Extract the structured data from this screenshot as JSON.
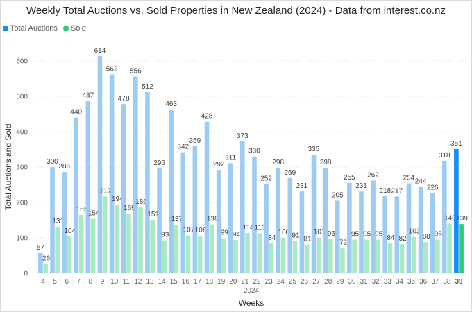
{
  "chart_data": {
    "type": "bar",
    "title": "Weekly Total Auctions vs. Sold Properties in New Zealand (2024) - Data from interest.co.nz",
    "xlabel": "Weeks",
    "x_sublabel": "2024",
    "ylabel": "Total Auctions and Sold",
    "ylim": [
      0,
      650
    ],
    "yticks": [
      0,
      100,
      200,
      300,
      400,
      500,
      600
    ],
    "grid": true,
    "legend_position": "top-left",
    "categories": [
      "4",
      "5",
      "6",
      "7",
      "8",
      "9",
      "10",
      "11",
      "12",
      "13",
      "14",
      "15",
      "16",
      "17",
      "18",
      "19",
      "20",
      "21",
      "22",
      "23",
      "24",
      "25",
      "26",
      "27",
      "28",
      "29",
      "30",
      "31",
      "32",
      "33",
      "34",
      "35",
      "36",
      "37",
      "38",
      "39"
    ],
    "highlight_category": "39",
    "series": [
      {
        "name": "Total Auctions",
        "color": "#9ecbf3",
        "highlight_color": "#118dff",
        "values": [
          57,
          300,
          286,
          440,
          487,
          614,
          562,
          478,
          556,
          512,
          296,
          463,
          342,
          359,
          428,
          292,
          311,
          373,
          330,
          252,
          298,
          269,
          231,
          335,
          298,
          205,
          255,
          231,
          262,
          218,
          217,
          254,
          244,
          226,
          318,
          351
        ]
      },
      {
        "name": "Sold",
        "color": "#a9ebc0",
        "highlight_color": "#2ecc71",
        "values": [
          26,
          131,
          104,
          165,
          154,
          217,
          194,
          169,
          186,
          151,
          93,
          137,
          107,
          106,
          138,
          99,
          94,
          114,
          113,
          84,
          100,
          91,
          81,
          101,
          96,
          72,
          95,
          95,
          95,
          84,
          82,
          103,
          88,
          95,
          140,
          139
        ]
      }
    ]
  }
}
